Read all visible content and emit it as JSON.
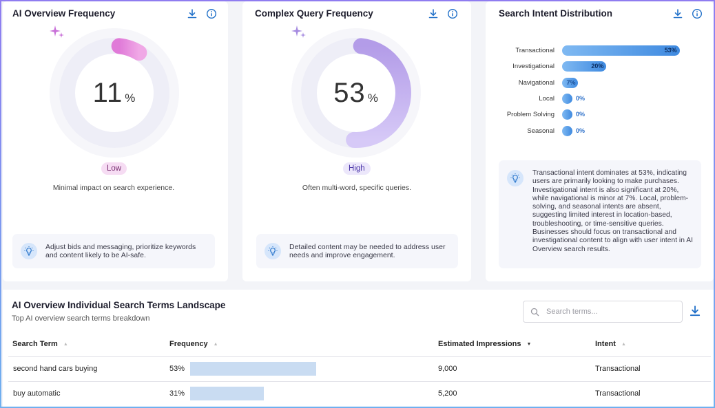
{
  "cards": {
    "ai_overview": {
      "title": "AI Overview Frequency",
      "value": 11,
      "value_text": "11",
      "unit": "%",
      "level": "Low",
      "description": "Minimal impact on search experience.",
      "tip": "Adjust bids and messaging, prioritize keywords and content likely to be AI-safe."
    },
    "complex_query": {
      "title": "Complex Query Frequency",
      "value": 53,
      "value_text": "53",
      "unit": "%",
      "level": "High",
      "description": "Often multi-word, specific queries.",
      "tip": "Detailed content may be needed to address user needs and improve engagement."
    },
    "intent_distribution": {
      "title": "Search Intent Distribution",
      "rows": [
        {
          "label": "Transactional",
          "value": 53,
          "value_text": "53%"
        },
        {
          "label": "Investigational",
          "value": 20,
          "value_text": "20%"
        },
        {
          "label": "Navigational",
          "value": 7,
          "value_text": "7%"
        },
        {
          "label": "Local",
          "value": 0,
          "value_text": "0%"
        },
        {
          "label": "Problem Solving",
          "value": 0,
          "value_text": "0%"
        },
        {
          "label": "Seasonal",
          "value": 0,
          "value_text": "0%"
        }
      ],
      "summary": "Transactional intent dominates at 53%, indicating users are primarily looking to make purchases. Investigational intent is also significant at 20%, while navigational is minor at 7%. Local, problem-solving, and seasonal intents are absent, suggesting limited interest in location-based, troubleshooting, or time-sensitive queries. Businesses should focus on transactional and investigational content to align with user intent in AI Overview search results."
    }
  },
  "landscape": {
    "title": "AI Overview Individual Search Terms Landscape",
    "subtitle": "Top AI overview search terms breakdown",
    "search_placeholder": "Search terms...",
    "columns": {
      "term": "Search Term",
      "frequency": "Frequency",
      "impressions": "Estimated Impressions",
      "intent": "Intent"
    },
    "rows": [
      {
        "term": "second hand cars buying",
        "frequency": 53,
        "frequency_text": "53%",
        "impressions": "9,000",
        "intent": "Transactional"
      },
      {
        "term": "buy automatic",
        "frequency": 31,
        "frequency_text": "31%",
        "impressions": "5,200",
        "intent": "Transactional"
      }
    ]
  },
  "colors": {
    "low_badge_bg": "#f6dcf3",
    "low_badge_text": "#7a2f72",
    "high_badge_bg": "#ece7fb",
    "high_badge_text": "#4a35a8",
    "icon_blue": "#1f6fc8",
    "bar_blue": "#3f8ae0"
  }
}
